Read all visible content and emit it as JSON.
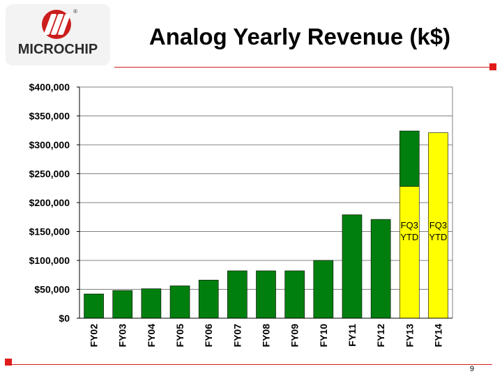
{
  "slide": {
    "title": "Analog Yearly Revenue (k$)",
    "logo_text": "MICROCHIP",
    "page_number": "9"
  },
  "colors": {
    "green": "#007f0e",
    "yellow": "#ffff00",
    "accent_red": "#d22020"
  },
  "chart_data": {
    "type": "bar",
    "stacked": true,
    "title": "Analog Yearly Revenue (k$)",
    "xlabel": "",
    "ylabel": "",
    "ylim": [
      0,
      400000
    ],
    "yticks": [
      0,
      50000,
      100000,
      150000,
      200000,
      250000,
      300000,
      350000,
      400000
    ],
    "ytick_labels": [
      "$0",
      "$50,000",
      "$100,000",
      "$150,000",
      "$200,000",
      "$250,000",
      "$300,000",
      "$350,000",
      "$400,000"
    ],
    "grid": true,
    "categories": [
      "FY02",
      "FY03",
      "FY04",
      "FY05",
      "FY06",
      "FY07",
      "FY08",
      "FY09",
      "FY10",
      "FY11",
      "FY12",
      "FY13",
      "FY14"
    ],
    "series": [
      {
        "name": "FQ3 YTD",
        "color": "#ffff00",
        "values": [
          0,
          0,
          0,
          0,
          0,
          0,
          0,
          0,
          0,
          0,
          0,
          228000,
          321000
        ]
      },
      {
        "name": "Revenue",
        "color": "#007f0e",
        "values": [
          42000,
          48000,
          51000,
          56000,
          66000,
          82000,
          82000,
          82000,
          100000,
          179000,
          171000,
          96000,
          0
        ]
      }
    ],
    "annotations": [
      {
        "category": "FY13",
        "text": [
          "FQ3",
          "YTD"
        ]
      },
      {
        "category": "FY14",
        "text": [
          "FQ3",
          "YTD"
        ]
      }
    ]
  }
}
